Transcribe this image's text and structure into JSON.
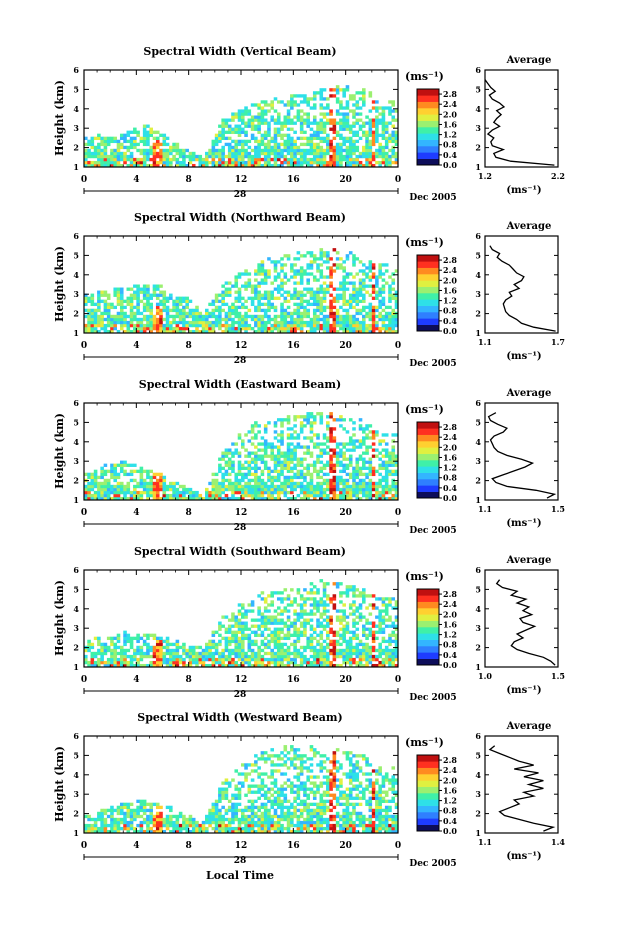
{
  "figure": {
    "xlabel": "Local Time",
    "date_label": "Dec 2005",
    "day_label": "28",
    "colorbar_unit": "(ms⁻¹)",
    "average_title": "Average",
    "average_xunit": "(ms⁻¹)",
    "ylabel": "Height (km)"
  },
  "palette": [
    "#0d0d5a",
    "#1e3cff",
    "#2f7fff",
    "#33b5ff",
    "#2ee0e8",
    "#3ff0a8",
    "#9bf070",
    "#e0f040",
    "#ffd030",
    "#ff8a20",
    "#ff3020",
    "#c01010"
  ],
  "chart_data": [
    {
      "type": "heatmap",
      "title": "Spectral Width (Vertical Beam)",
      "x_ticks": [
        "0",
        "4",
        "8",
        "12",
        "16",
        "20",
        "0"
      ],
      "xlim": [
        0,
        24
      ],
      "y_ticks": [
        "1",
        "2",
        "3",
        "4",
        "5",
        "6"
      ],
      "ylim": [
        1,
        6
      ],
      "colorbar_ticks": [
        "0.0",
        "0.4",
        "0.8",
        "1.2",
        "1.6",
        "2.0",
        "2.4",
        "2.8"
      ],
      "colorbar_range": [
        0.0,
        3.0
      ],
      "coverage": [
        2.6,
        2.7,
        2.8,
        3.2,
        2.7,
        2.0,
        1.5,
        3.5,
        4.0,
        4.5,
        4.6,
        4.8,
        5.0,
        5.3,
        5.2,
        4.5
      ],
      "profile": {
        "xlim": [
          1.2,
          2.2
        ],
        "x_ticks": [
          "1.2",
          "2.2"
        ],
        "y": [
          1.1,
          1.3,
          1.5,
          1.7,
          1.9,
          2.1,
          2.3,
          2.5,
          2.7,
          2.9,
          3.1,
          3.3,
          3.5,
          3.7,
          3.9,
          4.1,
          4.3,
          4.5,
          4.7,
          4.9,
          5.1,
          5.3,
          5.5
        ],
        "x": [
          2.15,
          1.55,
          1.35,
          1.32,
          1.45,
          1.3,
          1.28,
          1.32,
          1.24,
          1.3,
          1.4,
          1.32,
          1.36,
          1.42,
          1.36,
          1.46,
          1.4,
          1.3,
          1.26,
          1.34,
          1.28,
          1.24,
          1.2
        ]
      }
    },
    {
      "type": "heatmap",
      "title": "Spectral Width (Northward Beam)",
      "x_ticks": [
        "0",
        "4",
        "8",
        "12",
        "16",
        "20",
        "0"
      ],
      "xlim": [
        0,
        24
      ],
      "y_ticks": [
        "1",
        "2",
        "3",
        "4",
        "5",
        "6"
      ],
      "ylim": [
        1,
        6
      ],
      "colorbar_ticks": [
        "0.0",
        "0.4",
        "0.8",
        "1.2",
        "1.6",
        "2.0",
        "2.4",
        "2.8"
      ],
      "colorbar_range": [
        0.0,
        3.0
      ],
      "coverage": [
        3.0,
        3.2,
        3.4,
        3.6,
        3.5,
        3.0,
        2.0,
        3.5,
        4.2,
        4.8,
        5.0,
        5.2,
        5.5,
        5.3,
        5.0,
        4.6
      ],
      "profile": {
        "xlim": [
          1.1,
          1.7
        ],
        "x_ticks": [
          "1.1",
          "1.7"
        ],
        "y": [
          1.1,
          1.3,
          1.5,
          1.7,
          1.9,
          2.1,
          2.3,
          2.5,
          2.7,
          2.9,
          3.1,
          3.3,
          3.5,
          3.7,
          3.9,
          4.1,
          4.3,
          4.5,
          4.7,
          4.9,
          5.1,
          5.3,
          5.5
        ],
        "x": [
          1.68,
          1.5,
          1.4,
          1.36,
          1.3,
          1.27,
          1.26,
          1.25,
          1.27,
          1.32,
          1.3,
          1.38,
          1.34,
          1.4,
          1.42,
          1.36,
          1.33,
          1.3,
          1.24,
          1.2,
          1.22,
          1.16,
          1.14
        ]
      }
    },
    {
      "type": "heatmap",
      "title": "Spectral Width (Eastward Beam)",
      "x_ticks": [
        "0",
        "4",
        "8",
        "12",
        "16",
        "20",
        "0"
      ],
      "xlim": [
        0,
        24
      ],
      "y_ticks": [
        "1",
        "2",
        "3",
        "4",
        "5",
        "6"
      ],
      "ylim": [
        1,
        6
      ],
      "colorbar_ticks": [
        "0.0",
        "0.4",
        "0.8",
        "1.2",
        "1.6",
        "2.0",
        "2.4",
        "2.8"
      ],
      "colorbar_range": [
        0.0,
        3.0
      ],
      "coverage": [
        2.4,
        2.8,
        3.0,
        2.6,
        2.3,
        1.8,
        1.2,
        3.5,
        4.6,
        5.2,
        5.3,
        5.4,
        5.6,
        5.4,
        5.2,
        4.5
      ],
      "profile": {
        "xlim": [
          1.1,
          1.5
        ],
        "x_ticks": [
          "1.1",
          "1.5"
        ],
        "y": [
          1.1,
          1.3,
          1.5,
          1.7,
          1.9,
          2.1,
          2.3,
          2.5,
          2.7,
          2.9,
          3.1,
          3.3,
          3.5,
          3.7,
          3.9,
          4.1,
          4.3,
          4.5,
          4.7,
          4.9,
          5.1,
          5.3,
          5.5
        ],
        "x": [
          1.44,
          1.48,
          1.38,
          1.22,
          1.16,
          1.14,
          1.2,
          1.26,
          1.32,
          1.36,
          1.3,
          1.22,
          1.17,
          1.15,
          1.14,
          1.13,
          1.15,
          1.2,
          1.22,
          1.17,
          1.13,
          1.12,
          1.16
        ]
      }
    },
    {
      "type": "heatmap",
      "title": "Spectral Width (Southward Beam)",
      "x_ticks": [
        "0",
        "4",
        "8",
        "12",
        "16",
        "20",
        "0"
      ],
      "xlim": [
        0,
        24
      ],
      "y_ticks": [
        "1",
        "2",
        "3",
        "4",
        "5",
        "6"
      ],
      "ylim": [
        1,
        6
      ],
      "colorbar_ticks": [
        "0.0",
        "0.4",
        "0.8",
        "1.2",
        "1.6",
        "2.0",
        "2.4",
        "2.8"
      ],
      "colorbar_range": [
        0.0,
        3.0
      ],
      "coverage": [
        2.4,
        2.6,
        2.8,
        2.7,
        2.6,
        2.2,
        2.0,
        3.6,
        4.4,
        4.9,
        5.0,
        5.2,
        5.5,
        5.3,
        5.1,
        4.6
      ],
      "profile": {
        "xlim": [
          1.0,
          1.5
        ],
        "x_ticks": [
          "1.0",
          "1.5"
        ],
        "y": [
          1.1,
          1.3,
          1.5,
          1.7,
          1.9,
          2.1,
          2.3,
          2.5,
          2.7,
          2.9,
          3.1,
          3.3,
          3.5,
          3.7,
          3.9,
          4.1,
          4.3,
          4.5,
          4.7,
          4.9,
          5.1,
          5.3,
          5.5
        ],
        "x": [
          1.48,
          1.45,
          1.4,
          1.3,
          1.22,
          1.18,
          1.2,
          1.26,
          1.22,
          1.28,
          1.34,
          1.26,
          1.24,
          1.32,
          1.26,
          1.3,
          1.22,
          1.28,
          1.18,
          1.22,
          1.12,
          1.08,
          1.1
        ]
      }
    },
    {
      "type": "heatmap",
      "title": "Spectral Width (Westward Beam)",
      "x_ticks": [
        "0",
        "4",
        "8",
        "12",
        "16",
        "20",
        "0"
      ],
      "xlim": [
        0,
        24
      ],
      "y_ticks": [
        "1",
        "2",
        "3",
        "4",
        "5",
        "6"
      ],
      "ylim": [
        1,
        6
      ],
      "colorbar_ticks": [
        "0.0",
        "0.4",
        "0.8",
        "1.2",
        "1.6",
        "2.0",
        "2.4",
        "2.8"
      ],
      "colorbar_range": [
        0.0,
        3.0
      ],
      "coverage": [
        2.0,
        2.3,
        2.6,
        2.7,
        2.5,
        2.0,
        1.6,
        3.6,
        4.6,
        5.2,
        5.5,
        5.6,
        5.6,
        5.3,
        5.2,
        4.5
      ],
      "profile": {
        "xlim": [
          1.1,
          1.4
        ],
        "x_ticks": [
          "1.1",
          "1.4"
        ],
        "y": [
          1.1,
          1.3,
          1.5,
          1.7,
          1.9,
          2.1,
          2.3,
          2.5,
          2.7,
          2.9,
          3.1,
          3.3,
          3.5,
          3.7,
          3.9,
          4.1,
          4.3,
          4.5,
          4.7,
          4.9,
          5.1,
          5.3,
          5.5
        ],
        "x": [
          1.34,
          1.38,
          1.3,
          1.24,
          1.18,
          1.16,
          1.2,
          1.24,
          1.22,
          1.3,
          1.26,
          1.34,
          1.28,
          1.34,
          1.26,
          1.32,
          1.22,
          1.3,
          1.24,
          1.2,
          1.16,
          1.12,
          1.14
        ]
      }
    }
  ]
}
